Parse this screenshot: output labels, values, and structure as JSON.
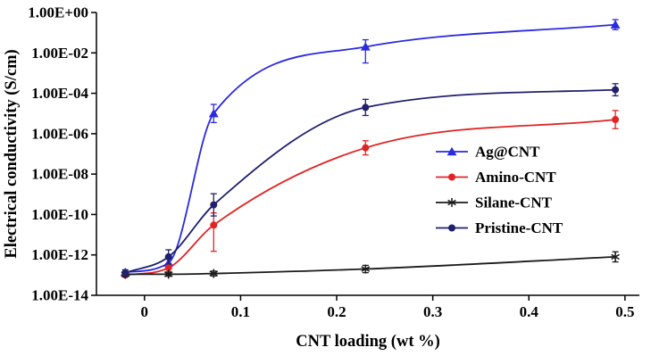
{
  "chart_data": {
    "type": "line",
    "title": "",
    "xlabel": "CNT loading (wt %)",
    "ylabel": "Electrical conductivity (S/cm)",
    "grid": false,
    "x_axis": {
      "scale": "linear",
      "range": [
        -0.05,
        0.515
      ],
      "tick_values": [
        0,
        0.1,
        0.2,
        0.3,
        0.4,
        0.5
      ],
      "tick_labels": [
        "0",
        "0.1",
        "0.2",
        "0.3",
        "0.4",
        "0.5"
      ]
    },
    "y_axis": {
      "scale": "log",
      "range_exponents": [
        -14,
        0
      ],
      "tick_exponents": [
        0,
        -2,
        -4,
        -6,
        -8,
        -10,
        -12,
        -14
      ],
      "tick_labels": [
        "1.00E+00",
        "1.00E-02",
        "1.00E-04",
        "1.00E-06",
        "1.00E-08",
        "1.00E-10",
        "1.00E-12",
        "1.00E-14"
      ]
    },
    "legend": {
      "position": "inside-right",
      "frame": false,
      "entries": [
        "Ag@CNT",
        "Amino-CNT",
        "Silane-CNT",
        "Pristine-CNT"
      ]
    },
    "x": [
      -0.02,
      0.025,
      0.072,
      0.23,
      0.49
    ],
    "series": [
      {
        "name": "Ag@CNT",
        "color": "#2a2ae0",
        "marker": "triangle",
        "values": [
          1.4e-13,
          4e-13,
          1e-05,
          0.02,
          0.25
        ],
        "err_decades_up": [
          0,
          0.3,
          0.45,
          0.35,
          0.25
        ],
        "err_decades_down": [
          0,
          0.3,
          0.45,
          0.8,
          0.25
        ]
      },
      {
        "name": "Amino-CNT",
        "color": "#e02424",
        "marker": "circle",
        "values": [
          1e-13,
          2.3e-13,
          3e-11,
          2e-07,
          5e-06
        ],
        "err_decades_up": [
          0,
          0.2,
          0.6,
          0.35,
          0.45
        ],
        "err_decades_down": [
          0,
          0.2,
          1.3,
          0.35,
          0.45
        ]
      },
      {
        "name": "Silane-CNT",
        "color": "#1a1a1a",
        "marker": "asterisk",
        "values": [
          1.1e-13,
          1.1e-13,
          1.2e-13,
          2e-13,
          8e-13
        ],
        "err_decades_up": [
          0.12,
          0.1,
          0.12,
          0.18,
          0.25
        ],
        "err_decades_down": [
          0.12,
          0.1,
          0.12,
          0.18,
          0.25
        ]
      },
      {
        "name": "Pristine-CNT",
        "color": "#20206e",
        "marker": "circle",
        "values": [
          1.3e-13,
          8e-13,
          3e-10,
          2e-05,
          0.00015
        ],
        "err_decades_up": [
          0.15,
          0.35,
          0.55,
          0.4,
          0.3
        ],
        "err_decades_down": [
          0.15,
          0.35,
          0.55,
          0.4,
          0.3
        ]
      }
    ]
  }
}
